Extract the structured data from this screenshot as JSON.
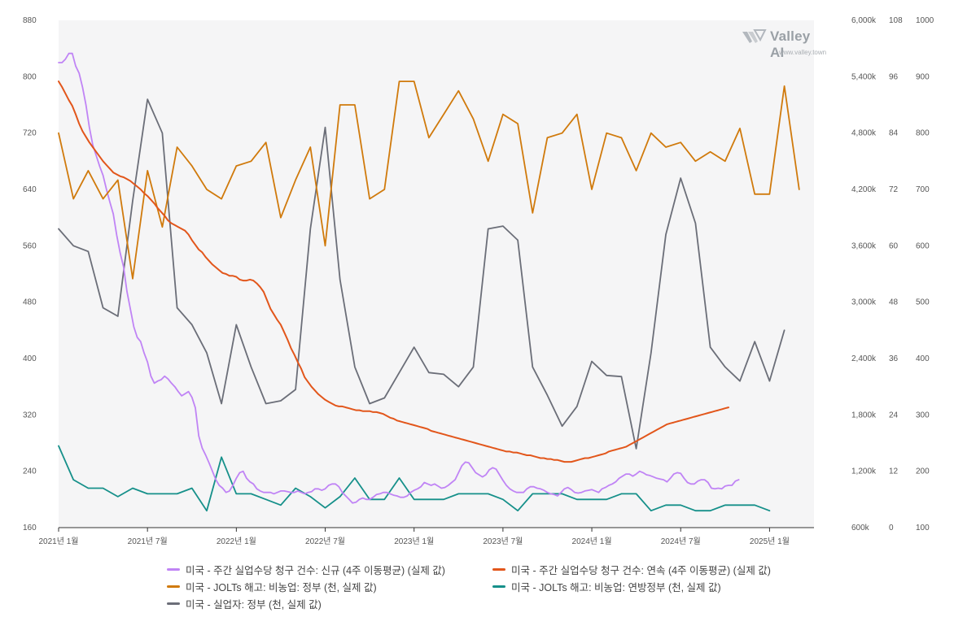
{
  "watermark": {
    "brand": "Valley AI",
    "url": "www.valley.town"
  },
  "colors": {
    "plot_background": "#f5f5f6",
    "initial_claims": "#c084f5",
    "continuing_claims": "#e2561b",
    "jolts_layoffs_gov": "#d07a0c",
    "jolts_layoffs_federal": "#16908a",
    "unemployed_gov": "#6b6e78"
  },
  "chart_data": {
    "type": "line",
    "x_ticks": [
      "2021년 1월",
      "2021년 7월",
      "2022년 1월",
      "2022년 7월",
      "2023년 1월",
      "2023년 7월",
      "2024년 1월",
      "2024년 7월",
      "2025년 1월"
    ],
    "axes": {
      "y1": {
        "range": [
          160,
          880
        ],
        "ticks": [
          "160",
          "240",
          "320",
          "400",
          "480",
          "560",
          "640",
          "720",
          "800",
          "880"
        ]
      },
      "y2": {
        "range": [
          600,
          6000
        ],
        "ticks": [
          "600k",
          "1,200k",
          "1,800k",
          "2,400k",
          "3,000k",
          "3,600k",
          "4,200k",
          "4,800k",
          "5,400k",
          "6,000k"
        ]
      },
      "y3": {
        "range": [
          0,
          108
        ],
        "ticks": [
          "0",
          "12",
          "24",
          "36",
          "48",
          "60",
          "72",
          "84",
          "96",
          "108"
        ]
      },
      "y4": {
        "range": [
          100,
          1000
        ],
        "ticks": [
          "100",
          "200",
          "300",
          "400",
          "500",
          "600",
          "700",
          "800",
          "900",
          "1000"
        ]
      }
    },
    "series": [
      {
        "name": "미국 - 주간 실업수당 청구 건수: 신규 (4주 이동평균) (실제 값)",
        "axis": "y1",
        "color_key": "initial_claims",
        "start": 2021.0,
        "step": 0.01923,
        "values": [
          820,
          820,
          825,
          833,
          833,
          815,
          805,
          785,
          760,
          728,
          703,
          688,
          673,
          660,
          640,
          622,
          605,
          575,
          550,
          530,
          495,
          470,
          445,
          430,
          424,
          408,
          395,
          375,
          365,
          368,
          370,
          375,
          371,
          365,
          360,
          353,
          347,
          350,
          353,
          345,
          330,
          290,
          273,
          263,
          252,
          240,
          228,
          220,
          216,
          210,
          212,
          220,
          230,
          238,
          240,
          230,
          225,
          222,
          215,
          212,
          210,
          210,
          210,
          208,
          210,
          212,
          212,
          211,
          210,
          210,
          212,
          210,
          208,
          210,
          211,
          215,
          215,
          213,
          215,
          220,
          222,
          222,
          218,
          210,
          205,
          200,
          195,
          196,
          200,
          202,
          200,
          200,
          203,
          207,
          208,
          210,
          210,
          208,
          206,
          205,
          203,
          203,
          205,
          210,
          213,
          215,
          218,
          224,
          222,
          220,
          222,
          219,
          216,
          217,
          220,
          224,
          228,
          238,
          248,
          253,
          252,
          245,
          238,
          235,
          232,
          235,
          242,
          245,
          243,
          235,
          227,
          220,
          215,
          212,
          210,
          210,
          210,
          215,
          218,
          218,
          216,
          215,
          213,
          210,
          208,
          207,
          205,
          210,
          215,
          217,
          214,
          210,
          209,
          210,
          212,
          213,
          214,
          212,
          210,
          215,
          217,
          220,
          222,
          225,
          230,
          233,
          236,
          236,
          233,
          236,
          240,
          238,
          235,
          234,
          232,
          230,
          229,
          228,
          225,
          230,
          236,
          238,
          237,
          230,
          224,
          222,
          222,
          226,
          228,
          228,
          224,
          216,
          215,
          216,
          215,
          219,
          220,
          220,
          226,
          228
        ]
      },
      {
        "name": "미국 - 주간 실업수당 청구 건수: 연속 (4주 이동평균) (실제 값)",
        "axis": "y2",
        "color_key": "continuing_claims",
        "start": 2021.0,
        "step": 0.01923,
        "values": [
          5350,
          5290,
          5220,
          5150,
          5090,
          5000,
          4900,
          4820,
          4760,
          4700,
          4650,
          4600,
          4550,
          4500,
          4460,
          4420,
          4380,
          4360,
          4340,
          4330,
          4310,
          4290,
          4260,
          4230,
          4200,
          4160,
          4130,
          4090,
          4050,
          4000,
          3960,
          3920,
          3870,
          3840,
          3820,
          3800,
          3780,
          3760,
          3720,
          3660,
          3610,
          3560,
          3530,
          3480,
          3440,
          3400,
          3370,
          3340,
          3310,
          3300,
          3280,
          3280,
          3270,
          3240,
          3230,
          3230,
          3240,
          3230,
          3200,
          3160,
          3110,
          3020,
          2930,
          2870,
          2810,
          2760,
          2680,
          2600,
          2510,
          2440,
          2360,
          2290,
          2200,
          2150,
          2100,
          2060,
          2020,
          1990,
          1960,
          1940,
          1920,
          1900,
          1890,
          1890,
          1880,
          1870,
          1860,
          1850,
          1850,
          1840,
          1840,
          1840,
          1830,
          1830,
          1820,
          1810,
          1790,
          1770,
          1760,
          1740,
          1730,
          1720,
          1710,
          1700,
          1690,
          1680,
          1670,
          1660,
          1650,
          1630,
          1620,
          1610,
          1600,
          1590,
          1580,
          1570,
          1560,
          1550,
          1540,
          1530,
          1520,
          1510,
          1500,
          1490,
          1480,
          1470,
          1460,
          1450,
          1440,
          1430,
          1420,
          1410,
          1410,
          1400,
          1400,
          1390,
          1380,
          1370,
          1370,
          1360,
          1350,
          1340,
          1340,
          1330,
          1330,
          1320,
          1320,
          1310,
          1300,
          1300,
          1300,
          1310,
          1320,
          1330,
          1340,
          1340,
          1350,
          1360,
          1370,
          1380,
          1390,
          1410,
          1420,
          1430,
          1440,
          1450,
          1460,
          1480,
          1500,
          1520,
          1540,
          1560,
          1580,
          1600,
          1620,
          1640,
          1660,
          1680,
          1700,
          1710,
          1720,
          1730,
          1740,
          1750,
          1760,
          1770,
          1780,
          1790,
          1800,
          1810,
          1820,
          1830,
          1840,
          1850,
          1860,
          1870,
          1880
        ]
      },
      {
        "name": "미국 - JOLTs 해고: 비농업: 정부 (천, 실제 값)",
        "axis": "y3",
        "color_key": "jolts_layoffs_gov",
        "start": 2021.0,
        "step": 0.08333,
        "values": [
          84,
          70,
          76,
          70,
          74,
          53,
          76,
          64,
          81,
          77,
          72,
          70,
          77,
          78,
          82,
          66,
          74,
          81,
          60,
          90,
          90,
          70,
          72,
          95,
          95,
          83,
          88,
          93,
          87,
          78,
          88,
          86,
          67,
          83,
          84,
          88,
          72,
          84,
          83,
          76,
          84,
          81,
          82,
          78,
          80,
          78,
          85,
          71,
          71,
          94,
          72
        ]
      },
      {
        "name": "미국 - JOLTs 해고: 비농업: 연방정부 (천, 실제 값)",
        "axis": "y4",
        "color_key": "jolts_layoffs_federal",
        "start": 2021.0,
        "step": 0.08333,
        "values": [
          245,
          185,
          170,
          170,
          155,
          170,
          160,
          160,
          160,
          170,
          130,
          225,
          160,
          160,
          150,
          140,
          170,
          155,
          135,
          155,
          188,
          150,
          150,
          188,
          150,
          150,
          150,
          160,
          160,
          160,
          150,
          130,
          160,
          160,
          160,
          150,
          150,
          150,
          160,
          160,
          130,
          140,
          140,
          130,
          130,
          140,
          140,
          140,
          130
        ]
      },
      {
        "name": "미국 - 실업자: 정부 (천, 실제 값)",
        "axis": "y4",
        "color_key": "unemployed_gov",
        "start": 2021.0,
        "step": 0.08333,
        "values": [
          630,
          600,
          590,
          490,
          475,
          680,
          860,
          800,
          490,
          460,
          410,
          320,
          460,
          385,
          320,
          325,
          345,
          630,
          810,
          540,
          385,
          320,
          330,
          375,
          420,
          375,
          372,
          350,
          385,
          630,
          635,
          610,
          385,
          335,
          280,
          315,
          395,
          370,
          368,
          240,
          410,
          620,
          720,
          640,
          420,
          385,
          360,
          430,
          360,
          450
        ]
      }
    ]
  }
}
